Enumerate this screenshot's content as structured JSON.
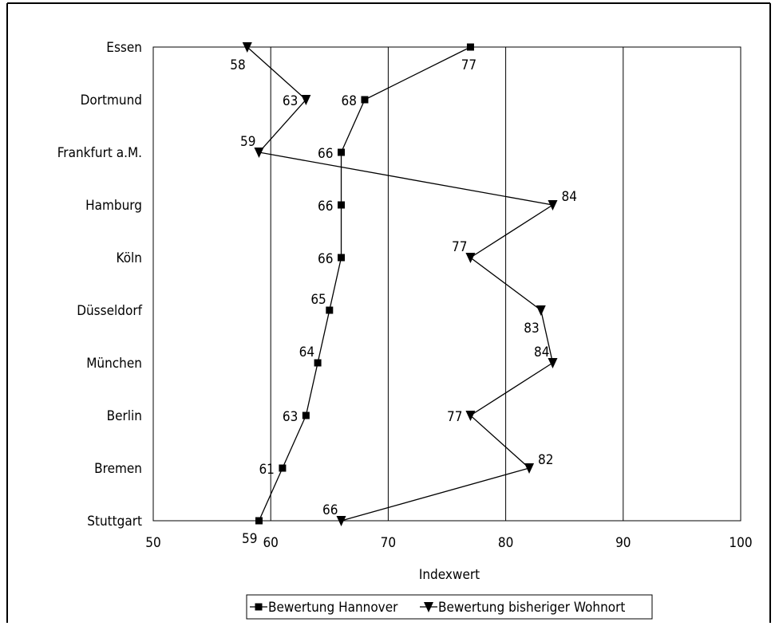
{
  "chart_data": {
    "type": "line",
    "orientation": "horizontal",
    "title": "",
    "xlabel": "Indexwert",
    "ylabel": "",
    "xlim": [
      50,
      100
    ],
    "x_ticks": [
      "50",
      "60",
      "70",
      "80",
      "90",
      "100"
    ],
    "x_tick_values": [
      50,
      60,
      70,
      80,
      90,
      100
    ],
    "grid": "vertical gridlines at each x tick",
    "legend_position": "bottom",
    "categories": [
      "Essen",
      "Dortmund",
      "Frankfurt a.M.",
      "Hamburg",
      "Köln",
      "Düsseldorf",
      "München",
      "Berlin",
      "Bremen",
      "Stuttgart"
    ],
    "series": [
      {
        "name": "Bewertung Hannover",
        "marker": "square",
        "color": "#000000",
        "values": [
          77,
          68,
          66,
          66,
          66,
          65,
          64,
          63,
          61,
          59
        ]
      },
      {
        "name": "Bewertung bisheriger Wohnort",
        "marker": "triangle-down",
        "color": "#000000",
        "values": [
          58,
          63,
          59,
          84,
          77,
          83,
          84,
          77,
          82,
          66
        ]
      }
    ]
  }
}
